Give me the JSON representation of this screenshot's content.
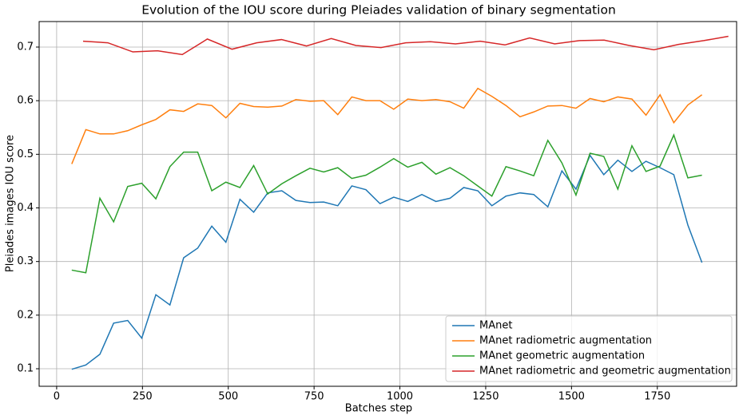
{
  "chart_data": {
    "type": "line",
    "title": "Evolution of the IOU score during Pleiades validation of binary segmentation",
    "xlabel": "Batches step",
    "ylabel": "Pleiades images IOU score",
    "x": [
      44,
      85,
      126,
      166,
      207,
      248,
      289,
      330,
      370,
      411,
      452,
      493,
      534,
      574,
      615,
      656,
      697,
      738,
      778,
      819,
      860,
      901,
      942,
      982,
      1023,
      1064,
      1105,
      1146,
      1186,
      1227,
      1268,
      1309,
      1350,
      1390,
      1431,
      1472,
      1513,
      1554,
      1594,
      1635,
      1676,
      1717,
      1758,
      1798,
      1839,
      1880
    ],
    "series": [
      {
        "name": "MAnet",
        "color": "#1f77b4",
        "values": [
          0.099,
          0.107,
          0.127,
          0.185,
          0.19,
          0.157,
          0.238,
          0.219,
          0.307,
          0.325,
          0.366,
          0.336,
          0.416,
          0.392,
          0.428,
          0.432,
          0.414,
          0.41,
          0.411,
          0.404,
          0.441,
          0.434,
          0.408,
          0.42,
          0.412,
          0.425,
          0.412,
          0.418,
          0.438,
          0.432,
          0.404,
          0.422,
          0.428,
          0.425,
          0.402,
          0.469,
          0.435,
          0.498,
          0.462,
          0.489,
          0.468,
          0.487,
          0.475,
          0.462,
          0.368,
          0.298
        ]
      },
      {
        "name": "MAnet radiometric augmentation",
        "color": "#ff7f0e",
        "values": [
          0.482,
          0.546,
          0.538,
          0.538,
          0.544,
          0.555,
          0.565,
          0.583,
          0.58,
          0.594,
          0.591,
          0.568,
          0.595,
          0.589,
          0.588,
          0.59,
          0.602,
          0.599,
          0.6,
          0.574,
          0.607,
          0.6,
          0.6,
          0.584,
          0.603,
          0.6,
          0.602,
          0.598,
          0.586,
          0.623,
          0.608,
          0.591,
          0.57,
          0.579,
          0.59,
          0.591,
          0.586,
          0.604,
          0.598,
          0.607,
          0.603,
          0.573,
          0.611,
          0.559,
          0.592,
          0.611
        ]
      },
      {
        "name": "MAnet geometric augmentation",
        "color": "#2ca02c",
        "values": [
          0.284,
          0.279,
          0.418,
          0.374,
          0.44,
          0.446,
          0.417,
          0.477,
          0.504,
          0.504,
          0.432,
          0.448,
          0.438,
          0.479,
          0.426,
          0.445,
          0.46,
          0.474,
          0.467,
          0.475,
          0.455,
          0.461,
          0.476,
          0.492,
          0.476,
          0.485,
          0.463,
          0.475,
          0.46,
          0.441,
          0.422,
          0.477,
          0.469,
          0.46,
          0.526,
          0.484,
          0.424,
          0.502,
          0.496,
          0.435,
          0.516,
          0.468,
          0.478,
          0.536,
          0.456,
          0.461
        ]
      },
      {
        "name": "MAnet radiometric and geometric augmentation",
        "color": "#d62728",
        "x": [
          77,
          149,
          222,
          294,
          366,
          439,
          511,
          583,
          655,
          728,
          800,
          872,
          945,
          1017,
          1089,
          1162,
          1234,
          1306,
          1378,
          1451,
          1523,
          1595,
          1668,
          1740,
          1812,
          1885,
          1957
        ],
        "values": [
          0.711,
          0.708,
          0.691,
          0.693,
          0.686,
          0.715,
          0.696,
          0.708,
          0.714,
          0.702,
          0.716,
          0.703,
          0.699,
          0.708,
          0.71,
          0.706,
          0.711,
          0.704,
          0.717,
          0.706,
          0.712,
          0.713,
          0.703,
          0.695,
          0.705,
          0.712,
          0.72
        ]
      }
    ],
    "xlim": [
      -51,
      1981
    ],
    "xticks": [
      0,
      250,
      500,
      750,
      1000,
      1250,
      1500,
      1750
    ],
    "ylim": [
      0.0673,
      0.7476
    ],
    "yticks": [
      0.1,
      0.2,
      0.3,
      0.4,
      0.5,
      0.6,
      0.7
    ],
    "grid": true,
    "legend": "lower right"
  }
}
